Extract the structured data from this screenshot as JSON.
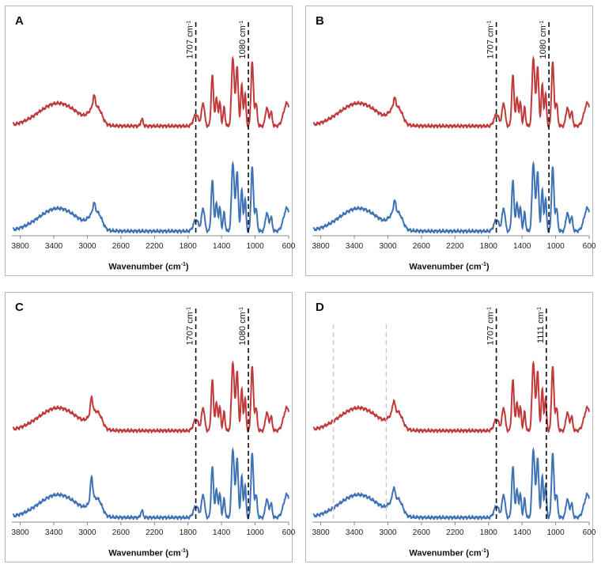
{
  "chart_data": [
    {
      "type": "line",
      "panel": "A",
      "xlabel": "Wavenumber",
      "xlabel_unit": "(cm",
      "xlabel_unit_sup": "-1",
      "xlabel_unit_end": ")",
      "xlim": [
        3900,
        600
      ],
      "x_ticks": [
        "3800",
        "3400",
        "3000",
        "2600",
        "2200",
        "1800",
        "1400",
        "1000",
        "600"
      ],
      "x_tick_values": [
        3800,
        3400,
        3000,
        2600,
        2200,
        1800,
        1400,
        1000,
        600
      ],
      "annotations": [
        {
          "label": "1707 cm",
          "sup": "-1",
          "x": 1707,
          "style": "black-dashed"
        },
        {
          "label": "1080 cm",
          "sup": "-1",
          "x": 1080,
          "style": "black-dashed"
        }
      ],
      "series": [
        {
          "name": "red",
          "color": "#c0393b",
          "baseline": 0.48,
          "spikes": [
            [
              2920,
              0.05
            ],
            [
              2350,
              0.03
            ]
          ]
        },
        {
          "name": "blue",
          "color": "#3f72b5",
          "baseline": 0.02,
          "spikes": [
            [
              2920,
              0.04
            ]
          ]
        }
      ]
    },
    {
      "type": "line",
      "panel": "B",
      "xlabel": "Wavenumber",
      "xlabel_unit": "(cm",
      "xlabel_unit_sup": "-1",
      "xlabel_unit_end": ")",
      "xlim": [
        3900,
        600
      ],
      "x_ticks": [
        "3800",
        "3400",
        "3000",
        "2600",
        "2200",
        "1800",
        "1400",
        "1000",
        "600"
      ],
      "x_tick_values": [
        3800,
        3400,
        3000,
        2600,
        2200,
        1800,
        1400,
        1000,
        600
      ],
      "annotations": [
        {
          "label": "1707 cm",
          "sup": "-1",
          "x": 1707,
          "style": "black-dashed"
        },
        {
          "label": "1080 cm",
          "sup": "-1",
          "x": 1080,
          "style": "black-dashed"
        }
      ],
      "series": [
        {
          "name": "red",
          "color": "#c0393b",
          "baseline": 0.48,
          "spikes": [
            [
              2920,
              0.04
            ]
          ]
        },
        {
          "name": "blue",
          "color": "#3f72b5",
          "baseline": 0.02,
          "spikes": [
            [
              2920,
              0.05
            ]
          ]
        }
      ]
    },
    {
      "type": "line",
      "panel": "C",
      "xlabel": "Wavenumber",
      "xlabel_unit": "(cm",
      "xlabel_unit_sup": "-1",
      "xlabel_unit_end": ")",
      "xlim": [
        3900,
        600
      ],
      "x_ticks": [
        "3800",
        "3400",
        "3000",
        "2600",
        "2200",
        "1800",
        "1400",
        "1000",
        "600"
      ],
      "x_tick_values": [
        3800,
        3400,
        3000,
        2600,
        2200,
        1800,
        1400,
        1000,
        600
      ],
      "annotations": [
        {
          "label": "1707 cm",
          "sup": "-1",
          "x": 1707,
          "style": "black-dashed"
        },
        {
          "label": "1080 cm",
          "sup": "-1",
          "x": 1080,
          "style": "black-dashed"
        }
      ],
      "series": [
        {
          "name": "red",
          "color": "#c0393b",
          "baseline": 0.4,
          "spikes": [
            [
              2950,
              0.07
            ]
          ]
        },
        {
          "name": "blue",
          "color": "#3f72b5",
          "baseline": 0.02,
          "spikes": [
            [
              2950,
              0.1
            ],
            [
              2350,
              0.03
            ]
          ]
        }
      ]
    },
    {
      "type": "line",
      "panel": "D",
      "xlabel": "Wavenumber",
      "xlabel_unit": "(cm",
      "xlabel_unit_sup": "-1",
      "xlabel_unit_end": ")",
      "xlim": [
        3900,
        600
      ],
      "x_ticks": [
        "3800",
        "3400",
        "3000",
        "2600",
        "2200",
        "1800",
        "1400",
        "1000",
        "600"
      ],
      "x_tick_values": [
        3800,
        3400,
        3000,
        2600,
        2200,
        1800,
        1400,
        1000,
        600
      ],
      "annotations": [
        {
          "label": "1707 cm",
          "sup": "-1",
          "x": 1707,
          "style": "black-dashed"
        },
        {
          "label": "1111 cm",
          "sup": "-1",
          "x": 1111,
          "style": "black-dashed"
        },
        {
          "label": "",
          "sup": "",
          "x": 3650,
          "style": "grey-dashed"
        },
        {
          "label": "",
          "sup": "",
          "x": 3020,
          "style": "grey-dashed"
        }
      ],
      "series": [
        {
          "name": "red",
          "color": "#c0393b",
          "baseline": 0.4,
          "spikes": [
            [
              2930,
              0.05
            ]
          ]
        },
        {
          "name": "blue",
          "color": "#3f72b5",
          "baseline": 0.02,
          "spikes": [
            [
              2930,
              0.05
            ]
          ]
        }
      ]
    }
  ]
}
